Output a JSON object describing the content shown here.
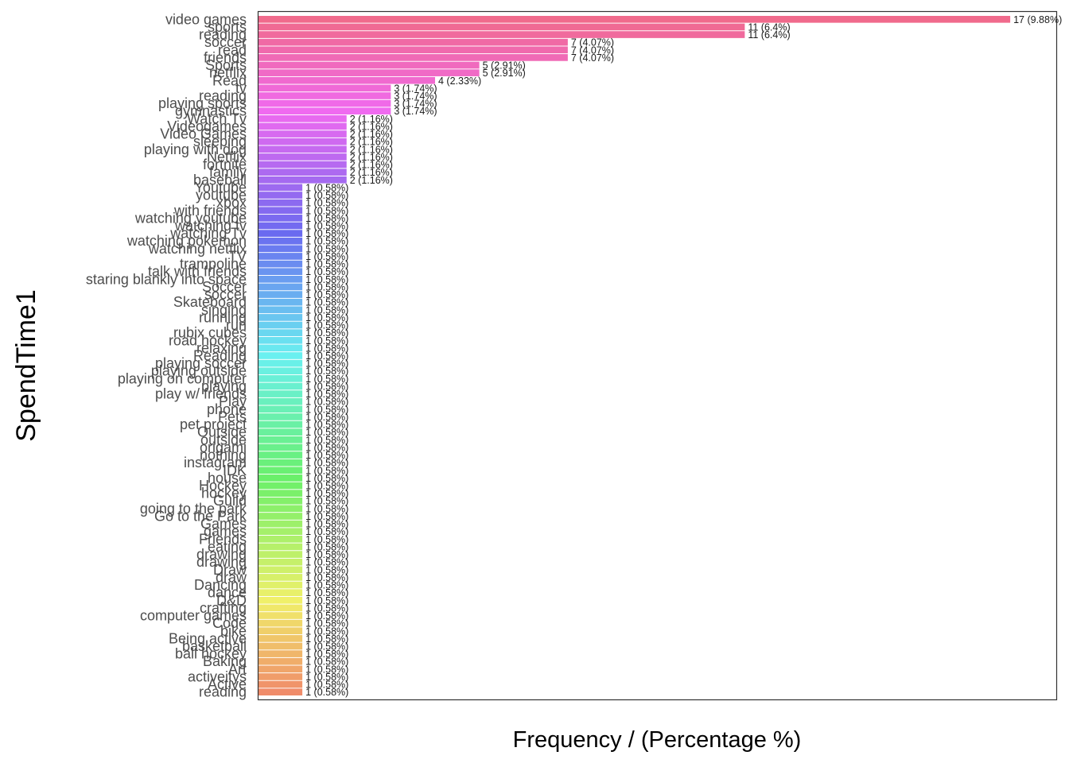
{
  "chart_data": {
    "type": "bar",
    "orientation": "horizontal",
    "xlabel": "Frequency / (Percentage %)",
    "ylabel": "SpendTime1",
    "xlim": [
      0,
      18.05
    ],
    "grid": false,
    "legend": "none",
    "categories": [
      "video games",
      "sports",
      "reading",
      "soccer",
      "read",
      "friends",
      "Sports",
      "netflix",
      "Read",
      "tv",
      "reading ",
      "playing sports",
      "gymnastics",
      "Watch Tv",
      "Videogames",
      "Video Games",
      "sleeping",
      "playing with dog",
      "Netflix",
      "fortnite",
      "family",
      "baseball",
      "Youtube",
      "youtube",
      "xbox",
      "with friends",
      "watching youtube",
      "watching tv",
      "watching Tv",
      "watching pokemon",
      "watching netflix",
      "TV",
      "trampoline",
      "talk with friends",
      "staring blankly into space",
      "Soccer",
      "soccer ",
      "Skateboard",
      "singing",
      "running",
      "run",
      "rubix cubes",
      "road hockey",
      "relaxing",
      "Reading",
      "playing soccer",
      "playing outside",
      "playing on computer",
      "playing",
      "play w/ friends",
      "Play",
      "phone",
      "Pets",
      "pet project",
      "Outside",
      "outside",
      "origami",
      "nothing",
      "instagram",
      "IDK",
      "house",
      "Hockey",
      "hockey",
      "Guild",
      "going to the park",
      "Go to the Park",
      "Games",
      "games",
      "Friends",
      "eating",
      "drawing",
      "drawing ",
      "Draw",
      "draw",
      "Dancing",
      "dance",
      "D&D",
      "crafting",
      "computer games",
      "Code",
      "bike",
      "Being active",
      "basketball",
      "ball hockey",
      "Baking",
      "Art",
      "activeitys",
      "Active",
      "reading  "
    ],
    "values": [
      17,
      11,
      11,
      7,
      7,
      7,
      5,
      5,
      4,
      3,
      3,
      3,
      3,
      2,
      2,
      2,
      2,
      2,
      2,
      2,
      2,
      2,
      1,
      1,
      1,
      1,
      1,
      1,
      1,
      1,
      1,
      1,
      1,
      1,
      1,
      1,
      1,
      1,
      1,
      1,
      1,
      1,
      1,
      1,
      1,
      1,
      1,
      1,
      1,
      1,
      1,
      1,
      1,
      1,
      1,
      1,
      1,
      1,
      1,
      1,
      1,
      1,
      1,
      1,
      1,
      1,
      1,
      1,
      1,
      1,
      1,
      1,
      1,
      1,
      1,
      1,
      1,
      1,
      1,
      1,
      1,
      1,
      1,
      1,
      1,
      1,
      1,
      1,
      1
    ],
    "value_labels": [
      "17 (9.88%)",
      "11 (6.4%)",
      "11 (6.4%)",
      "7 (4.07%)",
      "7 (4.07%)",
      "7 (4.07%)",
      "5 (2.91%)",
      "5 (2.91%)",
      "4 (2.33%)",
      "3 (1.74%)",
      "3 (1.74%)",
      "3 (1.74%)",
      "3 (1.74%)",
      "2 (1.16%)",
      "2 (1.16%)",
      "2 (1.16%)",
      "2 (1.16%)",
      "2 (1.16%)",
      "2 (1.16%)",
      "2 (1.16%)",
      "2 (1.16%)",
      "2 (1.16%)",
      "1 (0.58%)",
      "1 (0.58%)",
      "1 (0.58%)",
      "1 (0.58%)",
      "1 (0.58%)",
      "1 (0.58%)",
      "1 (0.58%)",
      "1 (0.58%)",
      "1 (0.58%)",
      "1 (0.58%)",
      "1 (0.58%)",
      "1 (0.58%)",
      "1 (0.58%)",
      "1 (0.58%)",
      "1 (0.58%)",
      "1 (0.58%)",
      "1 (0.58%)",
      "1 (0.58%)",
      "1 (0.58%)",
      "1 (0.58%)",
      "1 (0.58%)",
      "1 (0.58%)",
      "1 (0.58%)",
      "1 (0.58%)",
      "1 (0.58%)",
      "1 (0.58%)",
      "1 (0.58%)",
      "1 (0.58%)",
      "1 (0.58%)",
      "1 (0.58%)",
      "1 (0.58%)",
      "1 (0.58%)",
      "1 (0.58%)",
      "1 (0.58%)",
      "1 (0.58%)",
      "1 (0.58%)",
      "1 (0.58%)",
      "1 (0.58%)",
      "1 (0.58%)",
      "1 (0.58%)",
      "1 (0.58%)",
      "1 (0.58%)",
      "1 (0.58%)",
      "1 (0.58%)",
      "1 (0.58%)",
      "1 (0.58%)",
      "1 (0.58%)",
      "1 (0.58%)",
      "1 (0.58%)",
      "1 (0.58%)",
      "1 (0.58%)",
      "1 (0.58%)",
      "1 (0.58%)",
      "1 (0.58%)",
      "1 (0.58%)",
      "1 (0.58%)",
      "1 (0.58%)",
      "1 (0.58%)",
      "1 (0.58%)",
      "1 (0.58%)",
      "1 (0.58%)",
      "1 (0.58%)",
      "1 (0.58%)",
      "1 (0.58%)",
      "1 (0.58%)",
      "1 (0.58%)",
      "1 (0.58%)"
    ],
    "colors": {
      "palette": "hue-gradient",
      "top": "#ff6c96",
      "bottom": "#f8766d"
    }
  }
}
